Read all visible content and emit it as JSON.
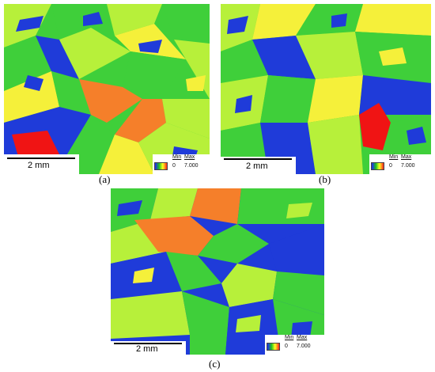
{
  "panels": {
    "a": {
      "caption": "(a)",
      "scale_text": "2 mm",
      "legend": {
        "min_label": "Min",
        "max_label": "Max",
        "min_value": "0",
        "max_value": "7.000"
      }
    },
    "b": {
      "caption": "(b)",
      "scale_text": "2 mm",
      "legend": {
        "min_label": "Min",
        "max_label": "Max",
        "min_value": "0",
        "max_value": "7.000"
      }
    },
    "c": {
      "caption": "(c)",
      "scale_text": "2 mm",
      "legend": {
        "min_label": "Min",
        "max_label": "Max",
        "min_value": "0",
        "max_value": "7.000"
      }
    }
  },
  "colors": {
    "blue": "#1f3bd9",
    "green": "#3fcf3a",
    "yellow_green": "#b7f03a",
    "yellow": "#f5f03a",
    "orange": "#f57f2a",
    "red": "#f01414"
  }
}
